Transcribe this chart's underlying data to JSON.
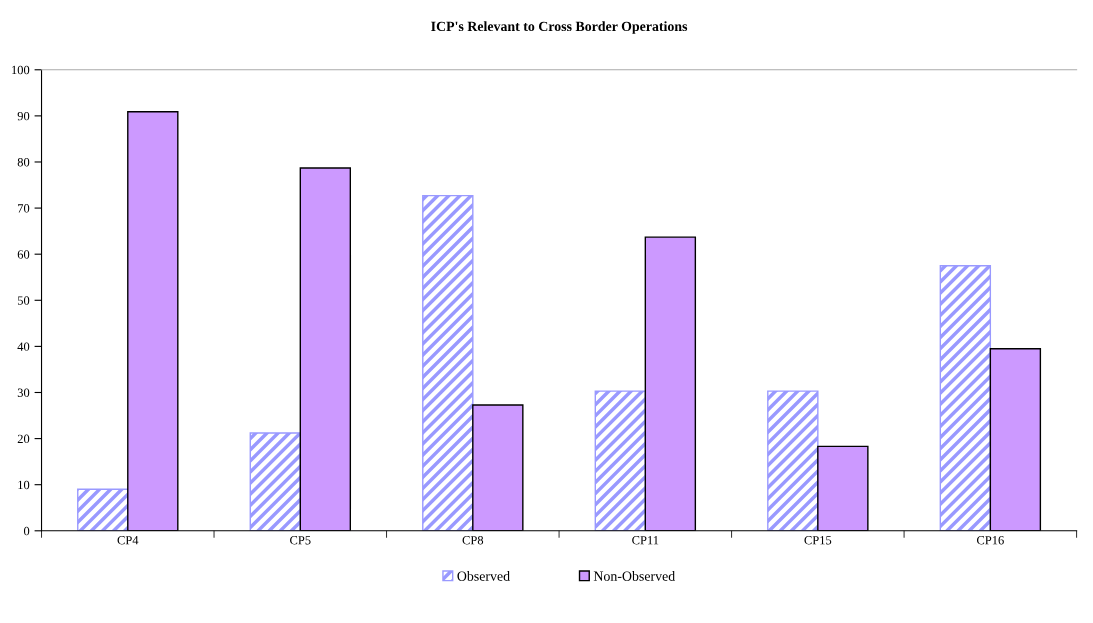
{
  "chart_data": {
    "type": "bar",
    "title": "ICP's Relevant to Cross Border Operations",
    "categories": [
      "CP4",
      "CP5",
      "CP8",
      "CP11",
      "CP15",
      "CP16"
    ],
    "series": [
      {
        "name": "Observed",
        "color": "#9999ff",
        "values": [
          9.0,
          21.2,
          72.7,
          30.3,
          30.3,
          57.5
        ]
      },
      {
        "name": "Non-Observed",
        "color": "#cc99ff",
        "values": [
          90.9,
          78.7,
          27.3,
          63.7,
          18.3,
          39.5
        ]
      }
    ],
    "ylim": [
      0,
      100
    ],
    "yticks": [
      0,
      10,
      20,
      30,
      40,
      50,
      60,
      70,
      80,
      90,
      100
    ],
    "grid": false,
    "legend": "bottom"
  }
}
